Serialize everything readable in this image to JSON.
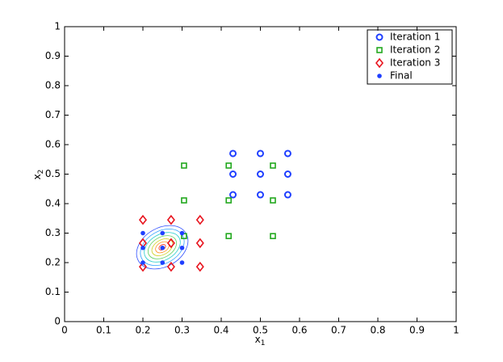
{
  "chart_data": {
    "type": "scatter",
    "xlabel": "x",
    "xlabel_subscript": "1",
    "ylabel": "x",
    "ylabel_subscript": "2",
    "xlim": [
      0,
      1
    ],
    "ylim": [
      0,
      1
    ],
    "xticks": [
      0,
      0.1,
      0.2,
      0.3,
      0.4,
      0.5,
      0.6,
      0.7,
      0.8,
      0.9,
      1
    ],
    "yticks": [
      0,
      0.1,
      0.2,
      0.3,
      0.4,
      0.5,
      0.6,
      0.7,
      0.8,
      0.9,
      1
    ],
    "legend": "top-right",
    "series": [
      {
        "name": "Iteration 1",
        "color": "#1f3fff",
        "marker": "circle",
        "x": [
          0.43,
          0.5,
          0.57,
          0.43,
          0.5,
          0.57,
          0.43,
          0.5,
          0.57
        ],
        "values": [
          0.57,
          0.57,
          0.57,
          0.5,
          0.5,
          0.5,
          0.43,
          0.43,
          0.43
        ]
      },
      {
        "name": "Iteration 2",
        "color": "#22a81e",
        "marker": "square",
        "x": [
          0.305,
          0.419,
          0.532,
          0.305,
          0.419,
          0.532,
          0.305,
          0.419,
          0.532
        ],
        "values": [
          0.529,
          0.529,
          0.529,
          0.411,
          0.411,
          0.411,
          0.29,
          0.29,
          0.29
        ]
      },
      {
        "name": "Iteration 3",
        "color": "#e8141e",
        "marker": "diamond",
        "x": [
          0.2,
          0.272,
          0.346,
          0.2,
          0.272,
          0.346,
          0.2,
          0.272,
          0.346
        ],
        "values": [
          0.345,
          0.345,
          0.345,
          0.266,
          0.266,
          0.266,
          0.186,
          0.186,
          0.186
        ]
      },
      {
        "name": "Final",
        "color": "#1f3fff",
        "marker": "dot",
        "x": [
          0.2,
          0.25,
          0.3,
          0.2,
          0.25,
          0.3,
          0.2,
          0.25,
          0.3
        ],
        "values": [
          0.3,
          0.3,
          0.3,
          0.25,
          0.25,
          0.25,
          0.2,
          0.2,
          0.2
        ]
      }
    ]
  }
}
